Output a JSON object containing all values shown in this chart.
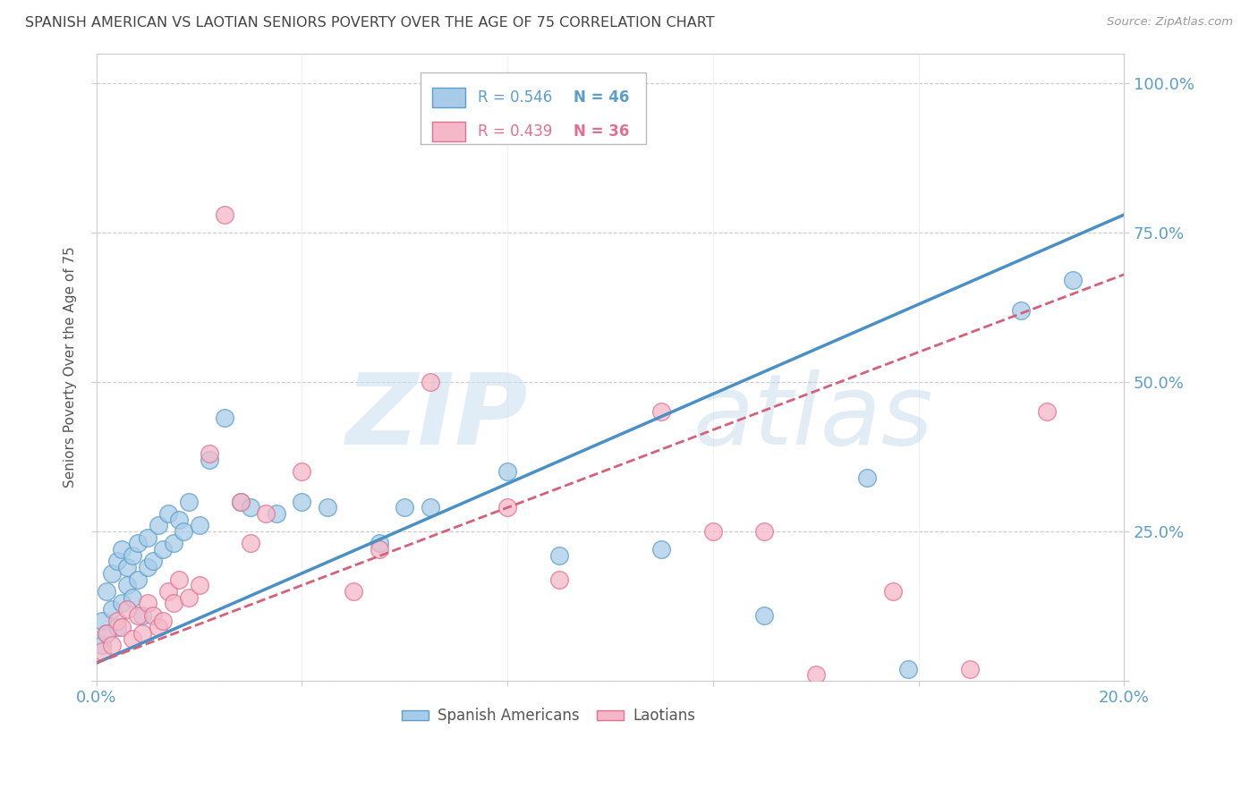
{
  "title": "SPANISH AMERICAN VS LAOTIAN SENIORS POVERTY OVER THE AGE OF 75 CORRELATION CHART",
  "source": "Source: ZipAtlas.com",
  "ylabel": "Seniors Poverty Over the Age of 75",
  "xlim": [
    0.0,
    0.2
  ],
  "ylim": [
    0.0,
    1.05
  ],
  "xticks": [
    0.0,
    0.04,
    0.08,
    0.12,
    0.16,
    0.2
  ],
  "xtick_labels": [
    "0.0%",
    "",
    "",
    "",
    "",
    "20.0%"
  ],
  "ytick_labels": [
    "",
    "25.0%",
    "50.0%",
    "75.0%",
    "100.0%"
  ],
  "yticks": [
    0.0,
    0.25,
    0.5,
    0.75,
    1.0
  ],
  "legend_r1": "R = 0.546",
  "legend_n1": "N = 46",
  "legend_r2": "R = 0.439",
  "legend_n2": "N = 36",
  "blue_color": "#a8cce8",
  "blue_edge_color": "#5b9ec9",
  "pink_color": "#f5b8c8",
  "pink_edge_color": "#e07090",
  "blue_line_color": "#4a90c4",
  "pink_line_color": "#d4607a",
  "title_color": "#444444",
  "axis_tick_color": "#5b9ec9",
  "grid_color": "#cccccc",
  "blue_scatter_x": [
    0.001,
    0.001,
    0.002,
    0.002,
    0.003,
    0.003,
    0.004,
    0.004,
    0.005,
    0.005,
    0.006,
    0.006,
    0.007,
    0.007,
    0.008,
    0.008,
    0.009,
    0.01,
    0.01,
    0.011,
    0.012,
    0.013,
    0.014,
    0.015,
    0.016,
    0.017,
    0.018,
    0.02,
    0.022,
    0.025,
    0.028,
    0.03,
    0.035,
    0.04,
    0.045,
    0.055,
    0.06,
    0.065,
    0.08,
    0.09,
    0.11,
    0.13,
    0.15,
    0.158,
    0.18,
    0.19
  ],
  "blue_scatter_y": [
    0.06,
    0.1,
    0.08,
    0.15,
    0.12,
    0.18,
    0.09,
    0.2,
    0.13,
    0.22,
    0.16,
    0.19,
    0.14,
    0.21,
    0.17,
    0.23,
    0.11,
    0.19,
    0.24,
    0.2,
    0.26,
    0.22,
    0.28,
    0.23,
    0.27,
    0.25,
    0.3,
    0.26,
    0.37,
    0.44,
    0.3,
    0.29,
    0.28,
    0.3,
    0.29,
    0.23,
    0.29,
    0.29,
    0.35,
    0.21,
    0.22,
    0.11,
    0.34,
    0.02,
    0.62,
    0.67
  ],
  "pink_scatter_x": [
    0.001,
    0.002,
    0.003,
    0.004,
    0.005,
    0.006,
    0.007,
    0.008,
    0.009,
    0.01,
    0.011,
    0.012,
    0.013,
    0.014,
    0.015,
    0.016,
    0.018,
    0.02,
    0.022,
    0.025,
    0.028,
    0.03,
    0.033,
    0.04,
    0.05,
    0.055,
    0.065,
    0.08,
    0.09,
    0.11,
    0.12,
    0.13,
    0.14,
    0.155,
    0.17,
    0.185
  ],
  "pink_scatter_y": [
    0.05,
    0.08,
    0.06,
    0.1,
    0.09,
    0.12,
    0.07,
    0.11,
    0.08,
    0.13,
    0.11,
    0.09,
    0.1,
    0.15,
    0.13,
    0.17,
    0.14,
    0.16,
    0.38,
    0.78,
    0.3,
    0.23,
    0.28,
    0.35,
    0.15,
    0.22,
    0.5,
    0.29,
    0.17,
    0.45,
    0.25,
    0.25,
    0.01,
    0.15,
    0.02,
    0.45
  ],
  "blue_line_x": [
    0.0,
    0.2
  ],
  "blue_line_y": [
    0.03,
    0.78
  ],
  "pink_line_x": [
    0.0,
    0.2
  ],
  "pink_line_y": [
    0.03,
    0.68
  ]
}
